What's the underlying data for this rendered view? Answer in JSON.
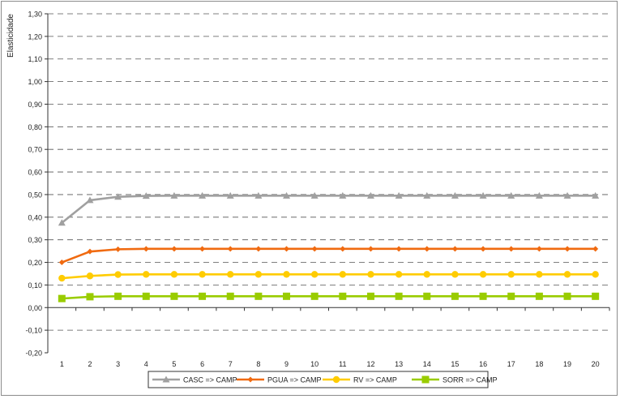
{
  "chart_data": {
    "type": "line",
    "title": "",
    "ylabel": "Elasticidade",
    "xlabel": "",
    "x": [
      1,
      2,
      3,
      4,
      5,
      6,
      7,
      8,
      9,
      10,
      11,
      12,
      13,
      14,
      15,
      16,
      17,
      18,
      19,
      20
    ],
    "ylim": [
      -0.2,
      1.3
    ],
    "ytick_step": 0.1,
    "yticks": [
      "-0,20",
      "-0,10",
      "0,00",
      "0,10",
      "0,20",
      "0,30",
      "0,40",
      "0,50",
      "0,60",
      "0,70",
      "0,80",
      "0,90",
      "1,00",
      "1,10",
      "1,20",
      "1,30"
    ],
    "grid": "horizontal-dashed",
    "legend_placement": "bottom",
    "series": [
      {
        "name": "CASC => CAMP",
        "color": "#a0a0a0",
        "marker": "triangle",
        "values": [
          0.375,
          0.475,
          0.49,
          0.494,
          0.495,
          0.495,
          0.495,
          0.495,
          0.495,
          0.495,
          0.495,
          0.495,
          0.495,
          0.495,
          0.495,
          0.495,
          0.495,
          0.495,
          0.495,
          0.495
        ]
      },
      {
        "name": "PGUA => CAMP",
        "color": "#f06a10",
        "marker": "diamond",
        "values": [
          0.2,
          0.248,
          0.258,
          0.26,
          0.26,
          0.26,
          0.26,
          0.26,
          0.26,
          0.26,
          0.26,
          0.26,
          0.26,
          0.26,
          0.26,
          0.26,
          0.26,
          0.26,
          0.26,
          0.26
        ]
      },
      {
        "name": "RV => CAMP",
        "color": "#ffcc00",
        "marker": "circle",
        "values": [
          0.13,
          0.14,
          0.146,
          0.147,
          0.147,
          0.147,
          0.147,
          0.147,
          0.147,
          0.147,
          0.147,
          0.147,
          0.147,
          0.147,
          0.147,
          0.147,
          0.147,
          0.147,
          0.147,
          0.147
        ]
      },
      {
        "name": "SORR => CAMP",
        "color": "#99cc00",
        "marker": "square",
        "values": [
          0.04,
          0.048,
          0.05,
          0.05,
          0.05,
          0.05,
          0.05,
          0.05,
          0.05,
          0.05,
          0.05,
          0.05,
          0.05,
          0.05,
          0.05,
          0.05,
          0.05,
          0.05,
          0.05,
          0.05
        ]
      }
    ]
  }
}
